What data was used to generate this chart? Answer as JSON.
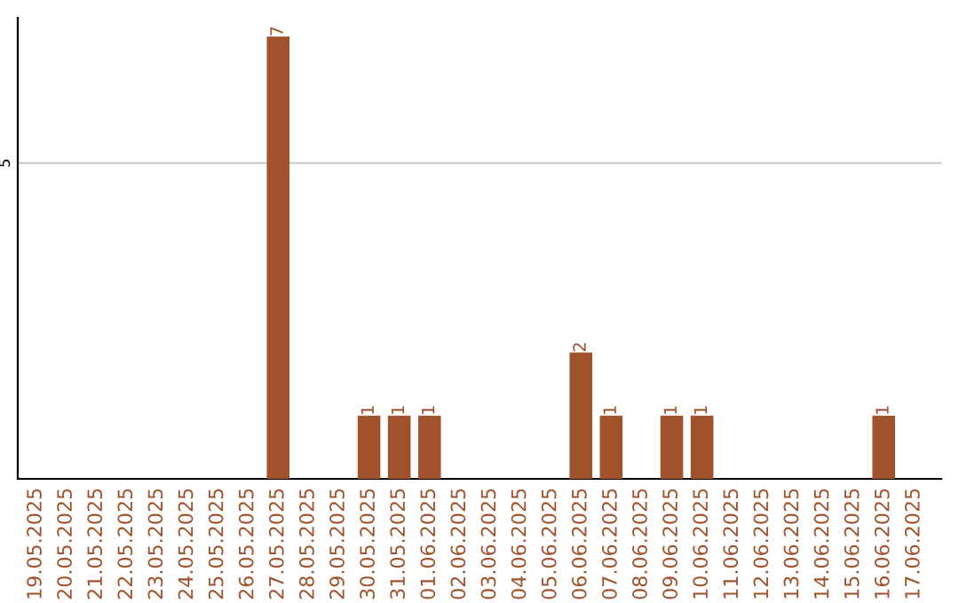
{
  "chart_data": {
    "type": "bar",
    "categories": [
      "19.05.2025",
      "20.05.2025",
      "21.05.2025",
      "22.05.2025",
      "23.05.2025",
      "24.05.2025",
      "25.05.2025",
      "26.05.2025",
      "27.05.2025",
      "28.05.2025",
      "29.05.2025",
      "30.05.2025",
      "31.05.2025",
      "01.06.2025",
      "02.06.2025",
      "03.06.2025",
      "04.06.2025",
      "05.06.2025",
      "06.06.2025",
      "07.06.2025",
      "08.06.2025",
      "09.06.2025",
      "10.06.2025",
      "11.06.2025",
      "12.06.2025",
      "13.06.2025",
      "14.06.2025",
      "15.06.2025",
      "16.06.2025",
      "17.06.2025"
    ],
    "values": [
      0,
      0,
      0,
      0,
      0,
      0,
      0,
      0,
      7,
      0,
      0,
      1,
      1,
      1,
      0,
      0,
      0,
      0,
      2,
      1,
      0,
      1,
      1,
      0,
      0,
      0,
      0,
      0,
      1,
      0
    ],
    "value_labels": [
      null,
      null,
      null,
      null,
      null,
      null,
      null,
      null,
      "7",
      null,
      null,
      "1",
      "1",
      "1",
      null,
      null,
      null,
      null,
      "2",
      "1",
      null,
      "1",
      "1",
      null,
      null,
      null,
      null,
      null,
      "1",
      null
    ],
    "color": "#a0522d",
    "ylim": [
      0,
      7.3
    ],
    "yticks": [
      5
    ],
    "grid": "y"
  }
}
